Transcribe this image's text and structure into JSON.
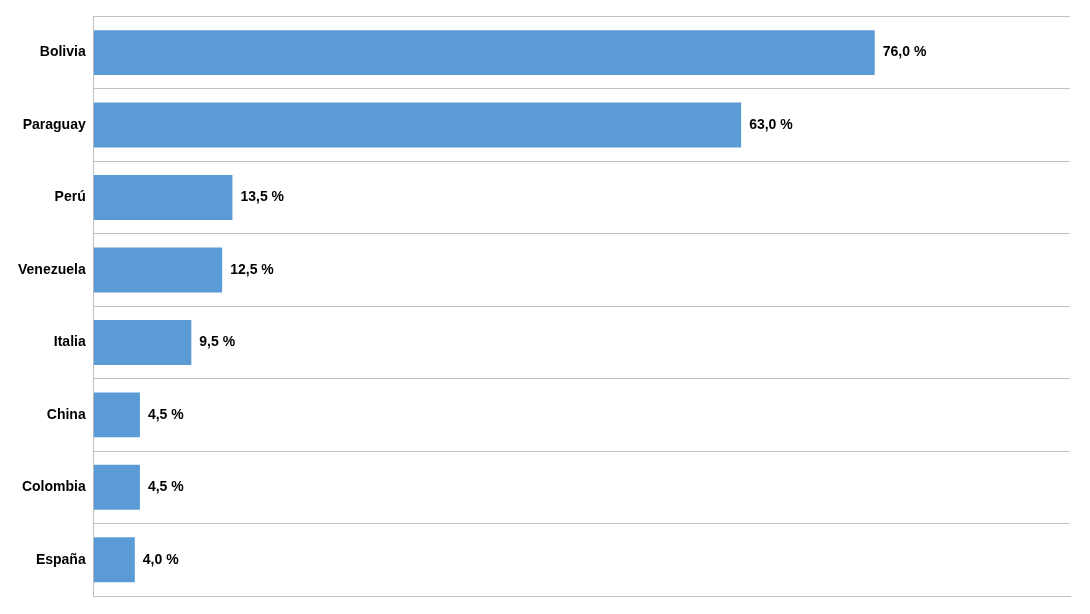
{
  "chart_data": {
    "type": "bar",
    "orientation": "horizontal",
    "categories": [
      "Bolivia",
      "Paraguay",
      "Perú",
      "Venezuela",
      "Italia",
      "China",
      "Colombia",
      "España"
    ],
    "values": [
      76.0,
      63.0,
      13.5,
      12.5,
      9.5,
      4.5,
      4.5,
      4.0
    ],
    "value_labels": [
      "76,0 %",
      "63,0 %",
      "13,5 %",
      "12,5 %",
      "9,5 %",
      "4,5 %",
      "4,5 %",
      "4,0 %"
    ],
    "data_labels": true,
    "color": "#5B9BD5",
    "xlim": [
      0,
      95
    ],
    "tick_labels": "y",
    "grid": true
  }
}
